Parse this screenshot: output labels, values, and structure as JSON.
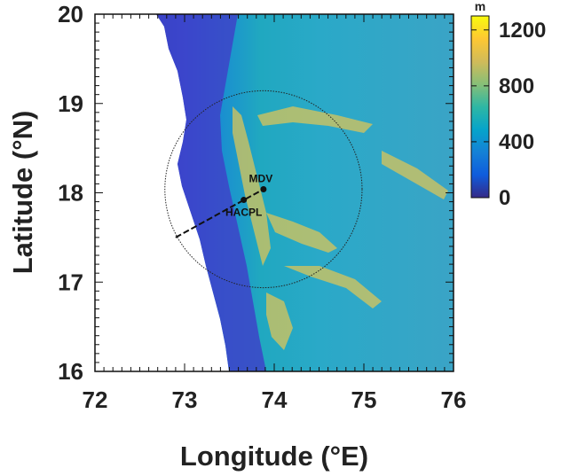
{
  "map": {
    "xlabel": "Longitude (°E)",
    "ylabel": "Latitude (°N)",
    "xlim": [
      72,
      76
    ],
    "ylim": [
      16,
      20
    ],
    "x_ticks": [
      "72",
      "73",
      "74",
      "75",
      "76"
    ],
    "y_ticks": [
      "16",
      "17",
      "18",
      "19",
      "20"
    ],
    "colormap": "parula",
    "sea_color": "#ffffff"
  },
  "colorbar": {
    "unit": "m",
    "range": [
      0,
      1300
    ],
    "ticks": [
      "0",
      "400",
      "800",
      "1200"
    ],
    "colors": [
      "#352a87",
      "#0f5cdd",
      "#1481d6",
      "#06a4ca",
      "#2eb7a4",
      "#87bf77",
      "#d1bb59",
      "#fec832",
      "#f9fb0e"
    ]
  },
  "sites": [
    {
      "name": "MDV",
      "lon": 73.88,
      "lat": 18.04
    },
    {
      "name": "HACPL",
      "lon": 73.66,
      "lat": 17.92
    }
  ],
  "radar_circle": {
    "center_lon": 73.88,
    "center_lat": 18.04,
    "radius_deg": 1.1
  },
  "transect": {
    "from_lon": 72.9,
    "from_lat": 17.5,
    "to_lon": 73.88,
    "to_lat": 18.04
  }
}
